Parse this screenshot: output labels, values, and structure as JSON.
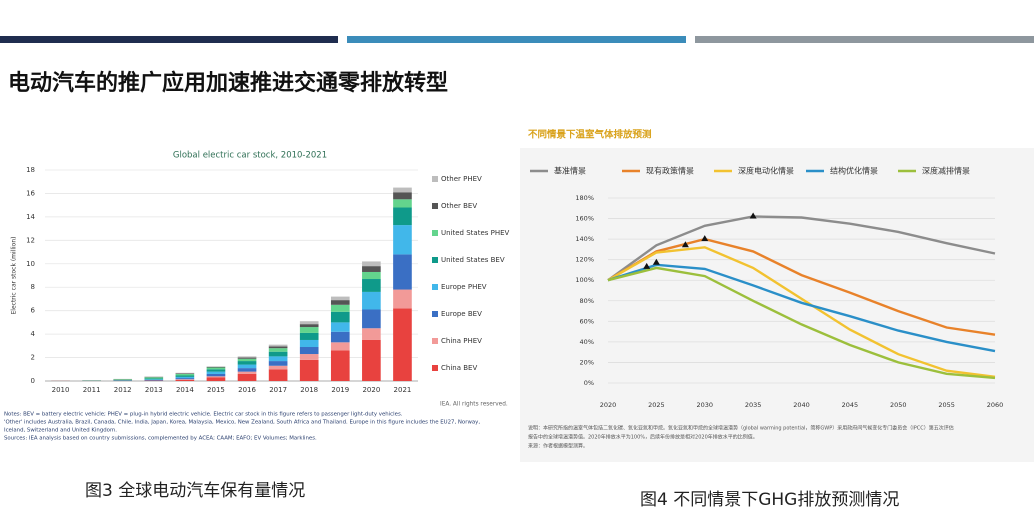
{
  "header": {
    "title": "电动汽车的推广应用加速推进交通零排放转型"
  },
  "captions": [
    "图3 全球电动汽车保有量情况",
    "图4 不同情景下GHG排放预测情况"
  ],
  "chart_data": [
    {
      "type": "bar",
      "stacked": true,
      "title": "Global electric car stock, 2010-2021",
      "y_label": "Electric car stock (million)",
      "categories": [
        "2010",
        "2011",
        "2012",
        "2013",
        "2014",
        "2015",
        "2016",
        "2017",
        "2018",
        "2019",
        "2020",
        "2021"
      ],
      "series": [
        {
          "name": "China BEV",
          "color": "#e8423f",
          "values": [
            0.01,
            0.01,
            0.02,
            0.03,
            0.1,
            0.3,
            0.6,
            1.0,
            1.8,
            2.6,
            3.5,
            6.2
          ]
        },
        {
          "name": "China PHEV",
          "color": "#f29a98",
          "values": [
            0,
            0,
            0,
            0.01,
            0.05,
            0.1,
            0.2,
            0.3,
            0.5,
            0.7,
            1.0,
            1.6
          ]
        },
        {
          "name": "Europe BEV",
          "color": "#3a6fc4",
          "values": [
            0,
            0.01,
            0.02,
            0.05,
            0.1,
            0.2,
            0.3,
            0.4,
            0.6,
            0.9,
            1.6,
            3.0
          ]
        },
        {
          "name": "Europe PHEV",
          "color": "#41b7ea",
          "values": [
            0,
            0,
            0.02,
            0.05,
            0.1,
            0.2,
            0.3,
            0.4,
            0.6,
            0.8,
            1.5,
            2.5
          ]
        },
        {
          "name": "United States BEV",
          "color": "#0f9a8a",
          "values": [
            0,
            0.01,
            0.03,
            0.08,
            0.12,
            0.2,
            0.3,
            0.4,
            0.6,
            0.9,
            1.1,
            1.5
          ]
        },
        {
          "name": "United States PHEV",
          "color": "#63d48d",
          "values": [
            0,
            0.02,
            0.06,
            0.1,
            0.13,
            0.15,
            0.2,
            0.3,
            0.5,
            0.6,
            0.6,
            0.7
          ]
        },
        {
          "name": "Other BEV",
          "color": "#555555",
          "values": [
            0.01,
            0.01,
            0.02,
            0.04,
            0.05,
            0.05,
            0.1,
            0.15,
            0.25,
            0.4,
            0.5,
            0.6
          ]
        },
        {
          "name": "Other PHEV",
          "color": "#bdbdbd",
          "values": [
            0,
            0.01,
            0.01,
            0.02,
            0.05,
            0.05,
            0.1,
            0.15,
            0.25,
            0.3,
            0.4,
            0.4
          ]
        }
      ],
      "ylim": [
        0,
        18
      ],
      "yticks": [
        0,
        2,
        4,
        6,
        8,
        10,
        12,
        14,
        16,
        18
      ],
      "grid": true,
      "legend": "right",
      "notes": [
        "Notes: BEV = battery electric vehicle; PHEV = plug-in hybrid electric vehicle. Electric car stock in this figure refers to passenger light-duty vehicles.",
        "'Other' includes Australia, Brazil, Canada, Chile, India, Japan, Korea, Malaysia, Mexico, New Zealand, South Africa and Thailand. Europe in this figure includes the EU27, Norway,",
        "Iceland, Switzerland and United Kingdom.",
        "Sources: IEA analysis based on country submissions, complemented by ACEA; CAAM; EAFO; EV Volumes; Marklines."
      ],
      "credit": "IEA. All rights reserved."
    },
    {
      "type": "line",
      "title": "不同情景下温室气体排放预测",
      "x": [
        2020,
        2025,
        2030,
        2035,
        2040,
        2045,
        2050,
        2055,
        2060
      ],
      "series": [
        {
          "name": "基准情景",
          "color": "#8c8c8c",
          "values": [
            100,
            134,
            153,
            162,
            161,
            155,
            147,
            136,
            126
          ]
        },
        {
          "name": "现有政策情景",
          "color": "#e8822a",
          "values": [
            100,
            128,
            140,
            128,
            105,
            88,
            70,
            54,
            47
          ]
        },
        {
          "name": "深度电动化情景",
          "color": "#f2c230",
          "values": [
            100,
            127,
            132,
            112,
            82,
            52,
            28,
            12,
            6
          ]
        },
        {
          "name": "结构优化情景",
          "color": "#2a8fc8",
          "values": [
            100,
            115,
            111,
            95,
            78,
            65,
            51,
            40,
            31
          ]
        },
        {
          "name": "深度减排情景",
          "color": "#9cbf3c",
          "values": [
            100,
            112,
            104,
            80,
            57,
            37,
            20,
            9,
            5
          ]
        }
      ],
      "markers": {
        "x": [
          2024,
          2025,
          2028,
          2030,
          2035
        ],
        "y": [
          113,
          117,
          134,
          140,
          162
        ]
      },
      "xlim": [
        2020,
        2060
      ],
      "xticks": [
        2020,
        2025,
        2030,
        2035,
        2040,
        2045,
        2050,
        2055,
        2060
      ],
      "ylim": [
        0,
        180
      ],
      "yticks": [
        {
          "value": 0,
          "label": "0%"
        },
        {
          "value": 20,
          "label": "20%"
        },
        {
          "value": 40,
          "label": "40%"
        },
        {
          "value": 60,
          "label": "60%"
        },
        {
          "value": 80,
          "label": "80%"
        },
        {
          "value": 100,
          "label": "100%"
        },
        {
          "value": 120,
          "label": "120%"
        },
        {
          "value": 140,
          "label": "140%"
        },
        {
          "value": 160,
          "label": "160%"
        },
        {
          "value": 180,
          "label": "180%"
        }
      ],
      "grid": true,
      "legend": "top",
      "notes": [
        "说明：本研究所指的温室气体包括二氧化碳、氧化亚氮和甲烷。氧化亚氮和甲烷的全球增温潜势（global warming potential，简称GWP）采用政府间气候变化专门委员会（IPCC）第五次评估",
        "报告中的全球增温潜势值。2020年排放水平为100%，后续年份排放是相对2020年排放水平的比例值。",
        "来源：作者根据模型测算。"
      ]
    }
  ]
}
